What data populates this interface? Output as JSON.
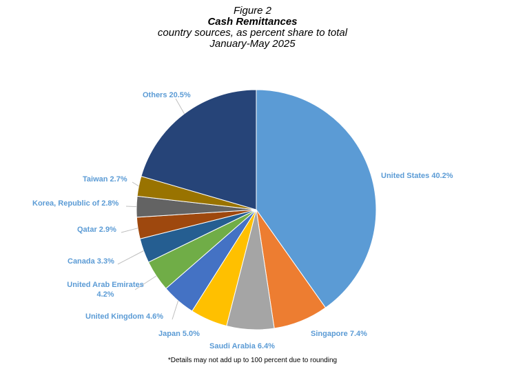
{
  "header": {
    "figure_label": "Figure 2",
    "title": "Cash Remittances",
    "subtitle": "country sources, as percent share to total",
    "period": "January-May 2025"
  },
  "footnote": "*Details may not add up to 100 percent due to rounding",
  "chart_data": {
    "type": "pie",
    "start_angle_deg": 0,
    "direction": "clockwise",
    "legend": "none",
    "slices": [
      {
        "label": "United States",
        "value": 40.2,
        "value_text": "40.2%",
        "color": "#5B9BD5",
        "label_color": "#5B9BD5"
      },
      {
        "label": "Singapore",
        "value": 7.4,
        "value_text": "7.4%",
        "color": "#ED7D31",
        "label_color": "#5B9BD5"
      },
      {
        "label": "Saudi Arabia",
        "value": 6.4,
        "value_text": "6.4%",
        "color": "#A5A5A5",
        "label_color": "#5B9BD5"
      },
      {
        "label": "Japan",
        "value": 5.0,
        "value_text": "5.0%",
        "color": "#FFC000",
        "label_color": "#5B9BD5"
      },
      {
        "label": "United Kingdom",
        "value": 4.6,
        "value_text": "4.6%",
        "color": "#4472C4",
        "label_color": "#5B9BD5"
      },
      {
        "label": "United Arab Emirates",
        "value": 4.2,
        "value_text": "4.2%",
        "color": "#70AD47",
        "label_color": "#5B9BD5"
      },
      {
        "label": "Canada",
        "value": 3.3,
        "value_text": "3.3%",
        "color": "#255E91",
        "label_color": "#5B9BD5"
      },
      {
        "label": "Qatar",
        "value": 2.9,
        "value_text": "2.9%",
        "color": "#9E480E",
        "label_color": "#5B9BD5"
      },
      {
        "label": "Korea, Republic of",
        "value": 2.8,
        "value_text": "2.8%",
        "color": "#636363",
        "label_color": "#5B9BD5"
      },
      {
        "label": "Taiwan",
        "value": 2.7,
        "value_text": "2.7%",
        "color": "#997300",
        "label_color": "#5B9BD5"
      },
      {
        "label": "Others",
        "value": 20.5,
        "value_text": "20.5%",
        "color": "#264478",
        "label_color": "#5B9BD5"
      }
    ]
  }
}
